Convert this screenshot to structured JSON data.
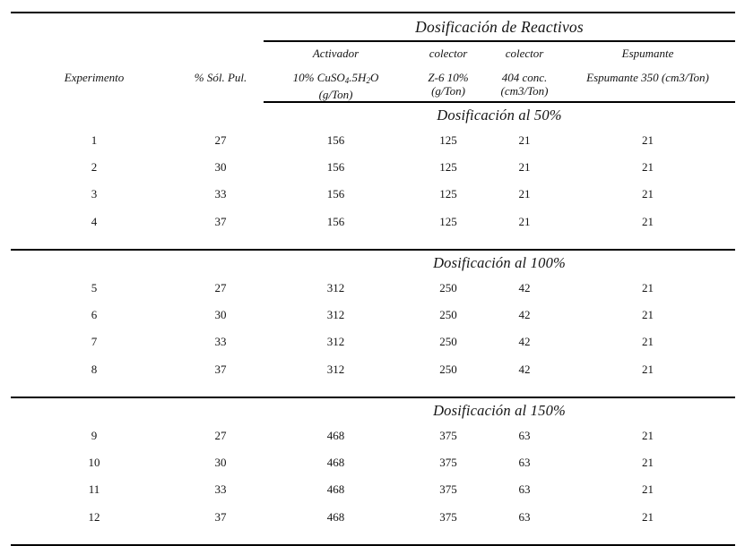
{
  "page": {
    "background": "#ffffff",
    "text_color": "#141414",
    "rule_color": "#000000"
  },
  "table": {
    "title": "Dosificación de Reactivos",
    "group_headers": {
      "activador": "Activador",
      "colector1": "colector",
      "colector2": "colector",
      "espumante": "Espumante"
    },
    "column_headers": {
      "experimento": "Experimento",
      "sol_pul": "% Sól. Pul.",
      "activador": {
        "f1": "10% CuSO",
        "sub1": "4",
        "f2": ".5H",
        "sub2": "2",
        "f3": "O",
        "line2": "(g/Ton)"
      },
      "colector_z6": {
        "line1": "Z-6 10%",
        "line2": "(g/Ton)"
      },
      "colector_404": {
        "line1": "404 conc.",
        "line2": "(cm3/Ton)"
      },
      "espumante": {
        "line1": "Espumante 350 (cm3/Ton)"
      }
    },
    "sections": [
      {
        "header": "Dosificación al 50%",
        "rows": [
          [
            "1",
            "27",
            "156",
            "125",
            "21",
            "21"
          ],
          [
            "2",
            "30",
            "156",
            "125",
            "21",
            "21"
          ],
          [
            "3",
            "33",
            "156",
            "125",
            "21",
            "21"
          ],
          [
            "4",
            "37",
            "156",
            "125",
            "21",
            "21"
          ]
        ]
      },
      {
        "header": "Dosificación al 100%",
        "rows": [
          [
            "5",
            "27",
            "312",
            "250",
            "42",
            "21"
          ],
          [
            "6",
            "30",
            "312",
            "250",
            "42",
            "21"
          ],
          [
            "7",
            "33",
            "312",
            "250",
            "42",
            "21"
          ],
          [
            "8",
            "37",
            "312",
            "250",
            "42",
            "21"
          ]
        ]
      },
      {
        "header": "Dosificación al 150%",
        "rows": [
          [
            "9",
            "27",
            "468",
            "375",
            "63",
            "21"
          ],
          [
            "10",
            "30",
            "468",
            "375",
            "63",
            "21"
          ],
          [
            "11",
            "33",
            "468",
            "375",
            "63",
            "21"
          ],
          [
            "12",
            "37",
            "468",
            "375",
            "63",
            "21"
          ]
        ]
      }
    ]
  }
}
